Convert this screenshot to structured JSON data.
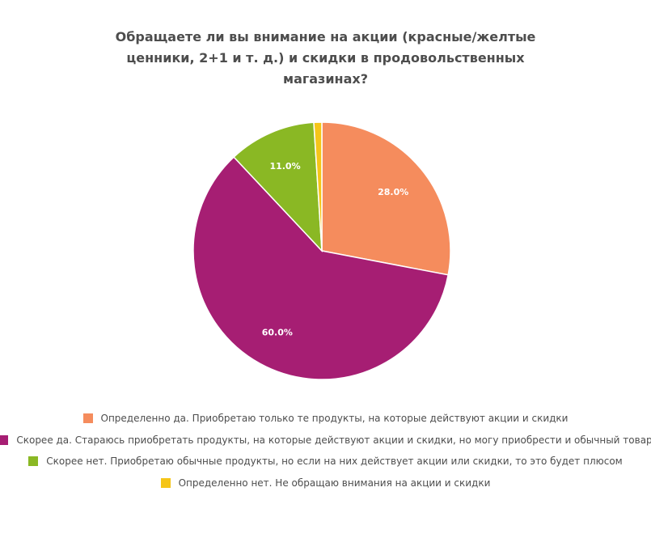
{
  "chart_data": {
    "type": "pie",
    "title_lines": [
      "Обращаете ли вы внимание на акции (красные/желтые",
      "ценники, 2+1 и т. д.) и скидки в продовольственных",
      "магазинах?"
    ],
    "slices": [
      {
        "label": "Определенно да. Приобретаю только те продукты, на которые действуют акции и скидки",
        "value": 28.0,
        "value_label": "28.0%",
        "color": "#f58c5d"
      },
      {
        "label": "Скорее да. Стараюсь приобретать продукты, на которые действуют акции и скидки, но могу приобрести и обычный товар",
        "value": 60.0,
        "value_label": "60.0%",
        "color": "#a61e73"
      },
      {
        "label": "Скорее нет. Приобретаю обычные продукты, но если на них действует акции или скидки, то это будет плюсом",
        "value": 11.0,
        "value_label": "11.0%",
        "color": "#8ab824"
      },
      {
        "label": "Определенно нет. Не обращаю внимания на акции и скидки",
        "value": 1.0,
        "value_label": "",
        "color": "#f5c518"
      }
    ],
    "legend_position": "bottom"
  }
}
